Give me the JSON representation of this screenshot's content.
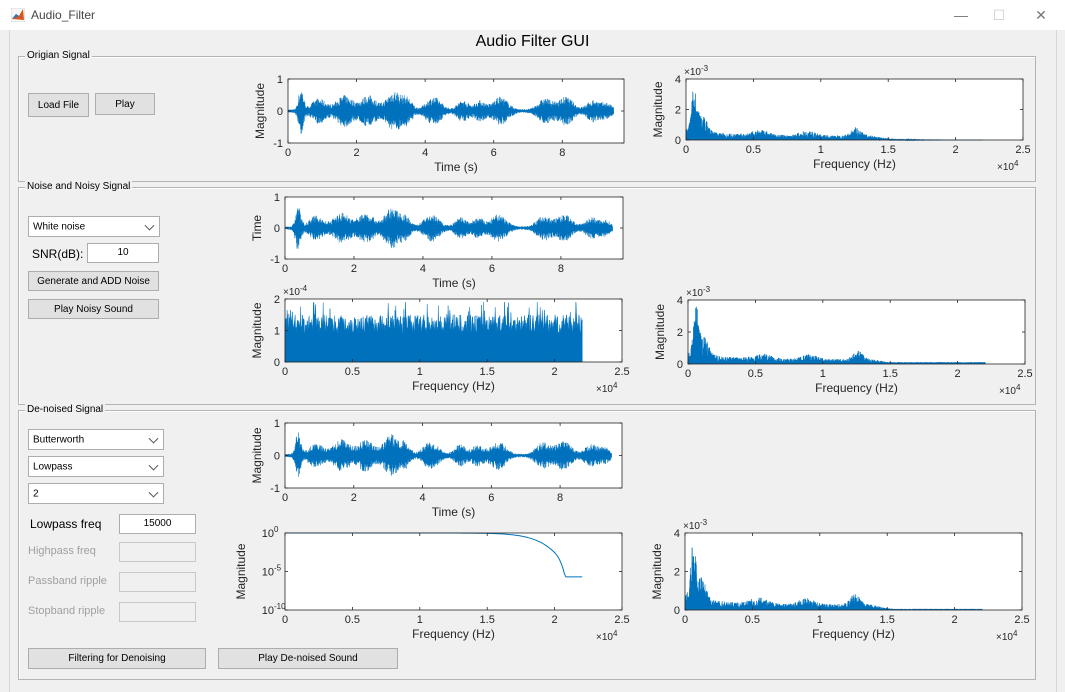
{
  "window": {
    "title": "Audio_Filter",
    "minimize_glyph": "—",
    "maximize_glyph": "☐",
    "close_glyph": "✕"
  },
  "gui_title": "Audio Filter GUI",
  "origin_panel": {
    "title": "Origian Signal",
    "load_label": "Load File",
    "play_label": "Play"
  },
  "noise_panel": {
    "title": "Noise and Noisy Signal",
    "noise_type": "White noise",
    "snr_label": "SNR(dB):",
    "snr_value": "10",
    "generate_label": "Generate and ADD Noise",
    "play_noisy_label": "Play Noisy Sound"
  },
  "denoise_panel": {
    "title": "De-noised Signal",
    "filter_type": "Butterworth",
    "band_type": "Lowpass",
    "order": "2",
    "lowpass_label": "Lowpass freq",
    "lowpass_value": "15000",
    "highpass_label": "Highpass freq",
    "passband_label": "Passband ripple",
    "stopband_label": "Stopband ripple",
    "filter_btn_label": "Filtering for Denoising",
    "play_denoised_label": "Play De-noised Sound"
  },
  "colors": {
    "signal": "#0072bd",
    "panel_border": "#b4b4b4"
  },
  "chart_data": [
    {
      "id": "orig_time",
      "type": "line",
      "signal": "audio",
      "xlabel": "Time (s)",
      "ylabel": "Magnitude",
      "xlim": [
        0,
        9.8
      ],
      "ylim": [
        -1,
        1
      ],
      "xticks": [
        0,
        2,
        4,
        6,
        8
      ],
      "xticklabels": [
        "0",
        "2",
        "4",
        "6",
        "8"
      ],
      "yticks": [
        -1,
        0,
        1
      ],
      "yticklabels": [
        "-1",
        "0",
        "1"
      ],
      "data_end": 9.5
    },
    {
      "id": "orig_spec",
      "type": "line",
      "signal": "spectrum",
      "xlabel": "Frequency (Hz)",
      "ylabel": "Magnitude",
      "xlim": [
        0,
        25000
      ],
      "ylim": [
        0,
        0.004
      ],
      "xticks": [
        0,
        5000,
        10000,
        15000,
        20000,
        25000
      ],
      "xticklabels": [
        "0",
        "0.5",
        "1",
        "1.5",
        "2",
        "2.5"
      ],
      "yticks": [
        0,
        0.002,
        0.004
      ],
      "yticklabels": [
        "0",
        "2",
        "4"
      ],
      "yexp": "-3",
      "xexp": "4",
      "data_end": 22050
    },
    {
      "id": "noisy_time",
      "type": "line",
      "signal": "audio",
      "xlabel": "Time (s)",
      "ylabel": "Time",
      "xlim": [
        0,
        9.8
      ],
      "ylim": [
        -1,
        1
      ],
      "xticks": [
        0,
        2,
        4,
        6,
        8
      ],
      "xticklabels": [
        "0",
        "2",
        "4",
        "6",
        "8"
      ],
      "yticks": [
        -1,
        0,
        1
      ],
      "yticklabels": [
        "-1",
        "0",
        "1"
      ],
      "data_end": 9.5
    },
    {
      "id": "noise_spec",
      "type": "area",
      "signal": "noise",
      "xlabel": "Frequency (Hz)",
      "ylabel": "Magnitude",
      "xlim": [
        0,
        25000
      ],
      "ylim": [
        0,
        0.0002
      ],
      "xticks": [
        0,
        5000,
        10000,
        15000,
        20000,
        25000
      ],
      "xticklabels": [
        "0",
        "0.5",
        "1",
        "1.5",
        "2",
        "2.5"
      ],
      "yticks": [
        0,
        0.0001,
        0.0002
      ],
      "yticklabels": [
        "0",
        "1",
        "2"
      ],
      "yexp": "-4",
      "xexp": "4",
      "data_end": 22050,
      "fill_level": 0.00012
    },
    {
      "id": "noisy_spec",
      "type": "line",
      "signal": "spectrum",
      "xlabel": "Frequency (Hz)",
      "ylabel": "Magnitude",
      "xlim": [
        0,
        25000
      ],
      "ylim": [
        0,
        0.004
      ],
      "xticks": [
        0,
        5000,
        10000,
        15000,
        20000,
        25000
      ],
      "xticklabels": [
        "0",
        "0.5",
        "1",
        "1.5",
        "2",
        "2.5"
      ],
      "yticks": [
        0,
        0.002,
        0.004
      ],
      "yticklabels": [
        "0",
        "2",
        "4"
      ],
      "yexp": "-3",
      "xexp": "4",
      "data_end": 22050,
      "noise_floor": 0.00012
    },
    {
      "id": "den_time",
      "type": "line",
      "signal": "audio",
      "xlabel": "Time (s)",
      "ylabel": "Magnitude",
      "xlim": [
        0,
        9.8
      ],
      "ylim": [
        -1,
        1
      ],
      "xticks": [
        0,
        2,
        4,
        6,
        8
      ],
      "xticklabels": [
        "0",
        "2",
        "4",
        "6",
        "8"
      ],
      "yticks": [
        -1,
        0,
        1
      ],
      "yticklabels": [
        "-1",
        "0",
        "1"
      ],
      "data_end": 9.5
    },
    {
      "id": "filter_resp",
      "type": "line",
      "signal": "butterworth",
      "scale": "log",
      "xlabel": "Frequency (Hz)",
      "ylabel": "Magnitude",
      "xlim": [
        0,
        25000
      ],
      "ylim": [
        1e-10,
        1
      ],
      "xticks": [
        0,
        5000,
        10000,
        15000,
        20000,
        25000
      ],
      "xticklabels": [
        "0",
        "0.5",
        "1",
        "1.5",
        "2",
        "2.5"
      ],
      "yticks": [
        1e-10,
        1e-05,
        1
      ],
      "yticklabels": [
        "10",
        "10",
        "10"
      ],
      "ysup": [
        "-10",
        "-5",
        "0"
      ],
      "xexp": "4",
      "data_end": 22050,
      "cutoff": 15000,
      "order": 2
    },
    {
      "id": "den_spec",
      "type": "line",
      "signal": "spectrum",
      "xlabel": "Frequency (Hz)",
      "ylabel": "Magnitude",
      "xlim": [
        0,
        25000
      ],
      "ylim": [
        0,
        0.004
      ],
      "xticks": [
        0,
        5000,
        10000,
        15000,
        20000,
        25000
      ],
      "xticklabels": [
        "0",
        "0.5",
        "1",
        "1.5",
        "2",
        "2.5"
      ],
      "yticks": [
        0,
        0.002,
        0.004
      ],
      "yticklabels": [
        "0",
        "2",
        "4"
      ],
      "yexp": "-3",
      "xexp": "4",
      "data_end": 22050,
      "noise_floor": 6e-05,
      "rolloff": 15000
    }
  ]
}
